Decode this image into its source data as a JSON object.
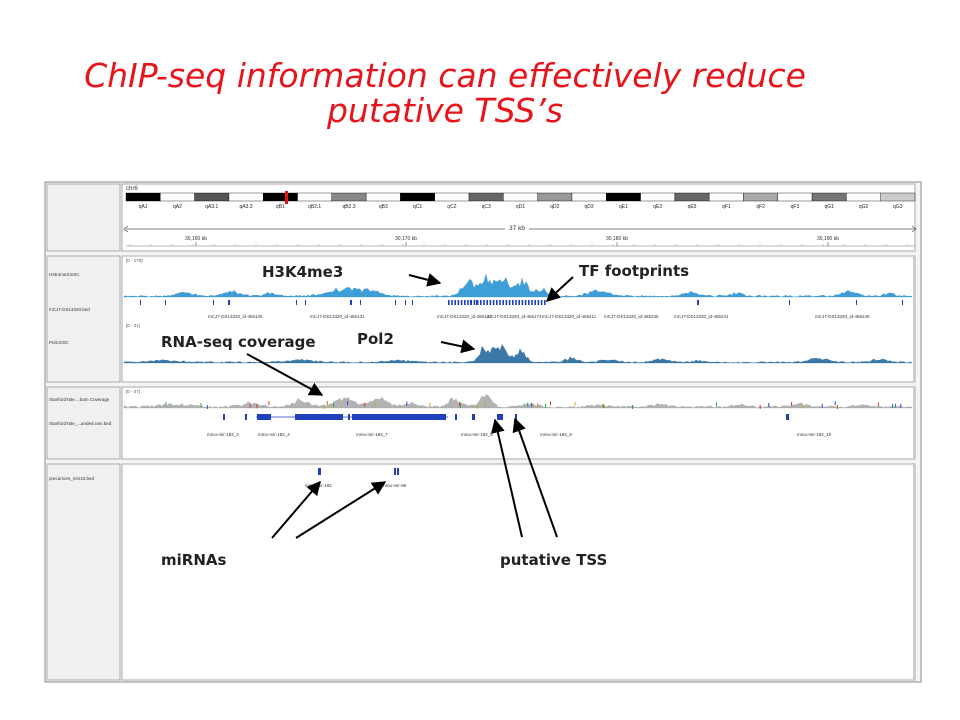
{
  "slide": {
    "title_line1": "ChIP-seq information can effectively reduce",
    "title_line2": "putative TSS’s",
    "accent_color": "#e8141b"
  },
  "ideogram": {
    "chromosome": "chr6",
    "bands": [
      "qA1",
      "qA2",
      "qA3.1",
      "qA3.3",
      "qB1",
      "qB2.1",
      "qB2.3",
      "qB3",
      "qC1",
      "qC2",
      "qC3",
      "qD1",
      "qD2",
      "qD3",
      "qE1",
      "qE2",
      "qE3",
      "qF1",
      "qF2",
      "qF3",
      "qG1",
      "qG2",
      "qG3"
    ],
    "span": "37 kb",
    "ruler_ticks": [
      "30,160 kb",
      "30,170 kb",
      "30,180 kb",
      "30,190 kb"
    ]
  },
  "panels": {
    "chip": {
      "tracks": [
        {
          "name": "H3K4me3.ESC",
          "range": "[0 - 170]"
        },
        {
          "name": "mCJ7-DS13320.bed"
        },
        {
          "name": "Pol2.ESC",
          "range": "[0 - 31]"
        }
      ],
      "bed_features": [
        "mCJ7-DS13320_id-465125",
        "mCJ7-DS13320_id-465131",
        "mCJ7-DS13320_id-465141",
        "mCJ7-DS13320_id-465174",
        "mCJ7-DS13320_id-465211",
        "mCJ7-DS13320_id-465235",
        "mCJ7-DS13320_id-465241",
        "mCJ7-DS13320_id-465245"
      ]
    },
    "rna": {
      "tracks": [
        {
          "name": "StanfordYale....bam Coverage",
          "range": "[0 - 47]"
        },
        {
          "name": "StanfordYale_...anded.ram.bed"
        }
      ],
      "features": [
        "mmu-mir-182_3",
        "mmu-mir-182_4",
        "mmu-mir-182_7",
        "mmu-mir-182_8",
        "mmu-mir-182_9",
        "mmu-mir-182_10"
      ]
    },
    "mirna": {
      "tracks": [
        {
          "name": "precursors_mm10.bed"
        }
      ],
      "features": [
        "mmu-mir-182",
        "mmu-mir-96"
      ]
    }
  },
  "annotations": {
    "h3k4me3": "H3K4me3",
    "tf_footprints": "TF footprints",
    "rna_seq": "RNA-seq coverage",
    "pol2": "Pol2",
    "mirnas": "miRNAs",
    "putative_tss": "putative TSS"
  }
}
